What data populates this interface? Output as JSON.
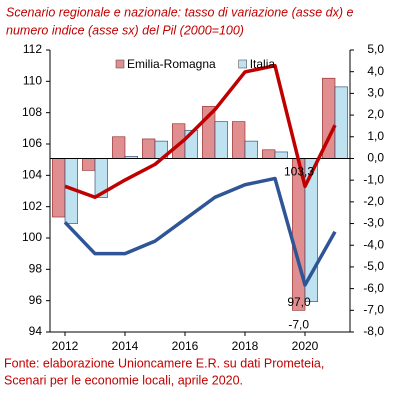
{
  "chart_data": {
    "type": "combo",
    "title": [
      "Scenario regionale e nazionale: tasso di variazione (asse dx) e",
      "numero indice (asse sx) del Pil (2000=100)"
    ],
    "source": [
      "Fonte: elaborazione Unioncamere E.R. su dati Prometeia,",
      "Scenari per le economie locali, aprile 2020."
    ],
    "x": [
      2012,
      2013,
      2014,
      2015,
      2016,
      2017,
      2018,
      2019,
      2020,
      2021
    ],
    "xlim": [
      2011.5,
      2021.5
    ],
    "xticks": [
      2012,
      2014,
      2016,
      2018,
      2020
    ],
    "ylim": [
      94,
      112
    ],
    "yticks": [
      94,
      96,
      98,
      100,
      102,
      104,
      106,
      108,
      110,
      112
    ],
    "y2lim": [
      -8,
      5
    ],
    "y2ticks": [
      {
        "value": -8,
        "label": "-8,0"
      },
      {
        "value": -7,
        "label": "-7,0"
      },
      {
        "value": -6,
        "label": "-6,0"
      },
      {
        "value": -5,
        "label": "-5,0"
      },
      {
        "value": -4,
        "label": "-4,0"
      },
      {
        "value": -3,
        "label": "-3,0"
      },
      {
        "value": -2,
        "label": "-2,0"
      },
      {
        "value": -1,
        "label": "-1,0"
      },
      {
        "value": 0,
        "label": "0,0"
      },
      {
        "value": 1,
        "label": "1,0"
      },
      {
        "value": 2,
        "label": "2,0"
      },
      {
        "value": 3,
        "label": "3,0"
      },
      {
        "value": 4,
        "label": "4,0"
      },
      {
        "value": 5,
        "label": "5,0"
      }
    ],
    "series": [
      {
        "name": "Emilia-Romagna",
        "type": "bar",
        "axis": "y2",
        "color": "#e08e90",
        "values": [
          -2.7,
          -0.55,
          1.0,
          0.9,
          1.6,
          2.4,
          1.7,
          0.4,
          -7.0,
          3.7
        ],
        "value_labels": [
          null,
          null,
          null,
          null,
          null,
          null,
          null,
          null,
          "-7,0",
          null
        ]
      },
      {
        "name": "Italia",
        "type": "bar",
        "axis": "y2",
        "color": "#bfe2f0",
        "values": [
          -3.0,
          -1.8,
          0.1,
          0.8,
          1.3,
          1.7,
          0.8,
          0.3,
          -6.6,
          3.3
        ]
      },
      {
        "type": "line",
        "color": "#c00000",
        "values": [
          103.3,
          102.6,
          103.7,
          104.7,
          106.3,
          108.2,
          110.6,
          111.0,
          103.3,
          107.2
        ],
        "value_labels": [
          null,
          null,
          null,
          null,
          null,
          null,
          null,
          null,
          "103,3",
          null
        ]
      },
      {
        "type": "line",
        "color": "#2f5597",
        "values": [
          101.0,
          99.0,
          99.0,
          99.8,
          101.2,
          102.6,
          103.4,
          103.8,
          97.0,
          100.4
        ],
        "value_labels": [
          null,
          null,
          null,
          null,
          null,
          null,
          null,
          null,
          "97,0",
          null
        ]
      }
    ]
  }
}
